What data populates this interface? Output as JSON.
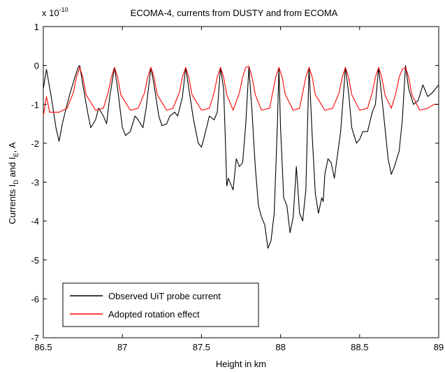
{
  "chart_data": {
    "type": "line",
    "title": "ECOMA-4, currents from DUSTY and from ECOMA",
    "xlabel": "Height in km",
    "ylabel": "Currents I_D and I_E, A",
    "ylabel_parts": {
      "pre": "Currents I",
      "sub1": "D",
      "mid": " and I",
      "sub2": "E",
      "post": ", A"
    },
    "y_multiplier": "x 10",
    "y_exponent": "-10",
    "xlim": [
      86.5,
      89
    ],
    "ylim": [
      -7,
      1
    ],
    "xticks": [
      "86.5",
      "87",
      "87.5",
      "88",
      "88.5",
      "89"
    ],
    "yticks": [
      "1",
      "0",
      "-1",
      "-2",
      "-3",
      "-4",
      "-5",
      "-6",
      "-7"
    ],
    "grid": false,
    "legend_position": "bottom-left",
    "peak_heights": [
      86.52,
      86.73,
      86.95,
      87.18,
      87.4,
      87.62,
      87.8,
      87.99,
      88.18,
      88.41,
      88.62,
      88.79
    ],
    "series": [
      {
        "name": "Observed UiT probe current",
        "color": "#000000",
        "x": [
          86.5,
          86.52,
          86.55,
          86.58,
          86.6,
          86.62,
          86.65,
          86.67,
          86.7,
          86.72,
          86.73,
          86.75,
          86.78,
          86.8,
          86.83,
          86.85,
          86.88,
          86.9,
          86.92,
          86.95,
          86.97,
          87.0,
          87.02,
          87.05,
          87.08,
          87.1,
          87.13,
          87.15,
          87.18,
          87.2,
          87.23,
          87.25,
          87.28,
          87.3,
          87.33,
          87.35,
          87.38,
          87.4,
          87.42,
          87.45,
          87.48,
          87.5,
          87.52,
          87.55,
          87.58,
          87.6,
          87.62,
          87.64,
          87.65,
          87.66,
          87.67,
          87.7,
          87.72,
          87.74,
          87.76,
          87.78,
          87.8,
          87.82,
          87.84,
          87.86,
          87.88,
          87.9,
          87.92,
          87.94,
          87.96,
          87.98,
          87.99,
          88.0,
          88.02,
          88.04,
          88.06,
          88.08,
          88.1,
          88.12,
          88.14,
          88.16,
          88.18,
          88.2,
          88.22,
          88.24,
          88.26,
          88.27,
          88.28,
          88.3,
          88.32,
          88.34,
          88.36,
          88.38,
          88.4,
          88.41,
          88.43,
          88.45,
          88.48,
          88.5,
          88.52,
          88.55,
          88.58,
          88.6,
          88.62,
          88.65,
          88.68,
          88.7,
          88.72,
          88.75,
          88.77,
          88.79,
          88.81,
          88.84,
          88.87,
          88.9,
          88.93,
          88.96,
          89.0
        ],
        "y": [
          -0.6,
          -0.1,
          -0.8,
          -1.6,
          -1.95,
          -1.5,
          -1.0,
          -0.7,
          -0.3,
          -0.05,
          0.0,
          -0.5,
          -1.2,
          -1.6,
          -1.4,
          -1.1,
          -1.3,
          -1.5,
          -0.8,
          -0.05,
          -0.6,
          -1.6,
          -1.8,
          -1.7,
          -1.3,
          -1.4,
          -1.6,
          -1.1,
          -0.05,
          -0.5,
          -1.3,
          -1.55,
          -1.5,
          -1.3,
          -1.2,
          -1.3,
          -0.8,
          -0.05,
          -0.6,
          -1.4,
          -2.0,
          -2.1,
          -1.8,
          -1.3,
          -1.4,
          -1.2,
          -0.05,
          -0.6,
          -1.8,
          -3.1,
          -2.9,
          -3.2,
          -2.4,
          -2.6,
          -2.5,
          -1.5,
          -0.05,
          -1.2,
          -2.6,
          -3.6,
          -3.9,
          -4.1,
          -4.7,
          -4.5,
          -3.8,
          -1.5,
          -0.05,
          -1.6,
          -3.4,
          -3.6,
          -4.3,
          -3.9,
          -2.6,
          -3.8,
          -4.0,
          -3.2,
          -0.05,
          -1.8,
          -3.3,
          -3.8,
          -3.4,
          -3.5,
          -2.8,
          -2.4,
          -2.5,
          -2.9,
          -2.3,
          -1.7,
          -0.6,
          -0.05,
          -0.7,
          -1.6,
          -2.0,
          -1.9,
          -1.7,
          -1.7,
          -1.2,
          -1.0,
          -0.05,
          -1.2,
          -2.4,
          -2.8,
          -2.6,
          -2.2,
          -1.4,
          0.0,
          -0.6,
          -1.0,
          -0.9,
          -0.5,
          -0.8,
          -0.7,
          -0.5
        ]
      },
      {
        "name": "Adopted rotation effect",
        "color": "#ff0000",
        "x": [
          86.5,
          86.52,
          86.54,
          86.6,
          86.65,
          86.69,
          86.71,
          86.73,
          86.75,
          86.77,
          86.83,
          86.88,
          86.91,
          86.93,
          86.95,
          86.97,
          86.99,
          87.05,
          87.1,
          87.14,
          87.16,
          87.18,
          87.2,
          87.22,
          87.28,
          87.32,
          87.36,
          87.38,
          87.4,
          87.42,
          87.44,
          87.5,
          87.55,
          87.58,
          87.6,
          87.62,
          87.64,
          87.66,
          87.7,
          87.74,
          87.76,
          87.78,
          87.8,
          87.82,
          87.84,
          87.88,
          87.93,
          87.95,
          87.97,
          87.99,
          88.01,
          88.03,
          88.08,
          88.12,
          88.14,
          88.16,
          88.18,
          88.2,
          88.22,
          88.28,
          88.33,
          88.37,
          88.39,
          88.41,
          88.43,
          88.45,
          88.5,
          88.55,
          88.58,
          88.6,
          88.62,
          88.64,
          88.66,
          88.7,
          88.73,
          88.75,
          88.77,
          88.79,
          88.81,
          88.83,
          88.88,
          88.93,
          88.97,
          89.0
        ],
        "y": [
          -1.3,
          -0.8,
          -1.2,
          -1.2,
          -1.1,
          -0.7,
          -0.3,
          -0.05,
          -0.3,
          -0.75,
          -1.15,
          -1.1,
          -0.7,
          -0.3,
          -0.05,
          -0.3,
          -0.75,
          -1.15,
          -1.1,
          -0.7,
          -0.3,
          -0.05,
          -0.3,
          -0.75,
          -1.15,
          -1.1,
          -0.7,
          -0.3,
          -0.05,
          -0.3,
          -0.75,
          -1.15,
          -1.1,
          -0.7,
          -0.3,
          -0.05,
          -0.3,
          -0.75,
          -1.15,
          -0.7,
          -0.3,
          -0.05,
          -0.02,
          -0.3,
          -0.75,
          -1.15,
          -1.1,
          -0.7,
          -0.3,
          -0.05,
          -0.3,
          -0.75,
          -1.15,
          -1.1,
          -0.7,
          -0.3,
          -0.05,
          -0.3,
          -0.75,
          -1.15,
          -1.1,
          -0.7,
          -0.3,
          -0.05,
          -0.3,
          -0.75,
          -1.15,
          -1.1,
          -0.7,
          -0.3,
          -0.05,
          -0.3,
          -0.75,
          -1.1,
          -0.7,
          -0.3,
          -0.1,
          -0.05,
          -0.3,
          -0.75,
          -1.15,
          -1.1,
          -1.0,
          -1.0
        ]
      }
    ]
  }
}
